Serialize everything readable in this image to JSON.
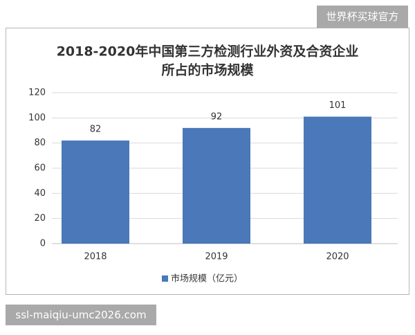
{
  "watermark": "世界杯买球官方",
  "footer_url": "ssl-maiqiu-umc2026.com",
  "chart_data": {
    "type": "bar",
    "title": [
      "2018-2020年中国第三方检测行业外资及合资企业",
      "所占的市场规模"
    ],
    "categories": [
      "2018",
      "2019",
      "2020"
    ],
    "series": [
      {
        "name": "市场规模（亿元）",
        "color": "#4a78b9",
        "values": [
          82,
          92,
          101
        ]
      }
    ],
    "ylim": [
      0,
      120
    ],
    "yticks": [
      0,
      20,
      40,
      60,
      80,
      100,
      120
    ],
    "grid": true,
    "legend": "bottom",
    "value_labels_shown": true
  }
}
